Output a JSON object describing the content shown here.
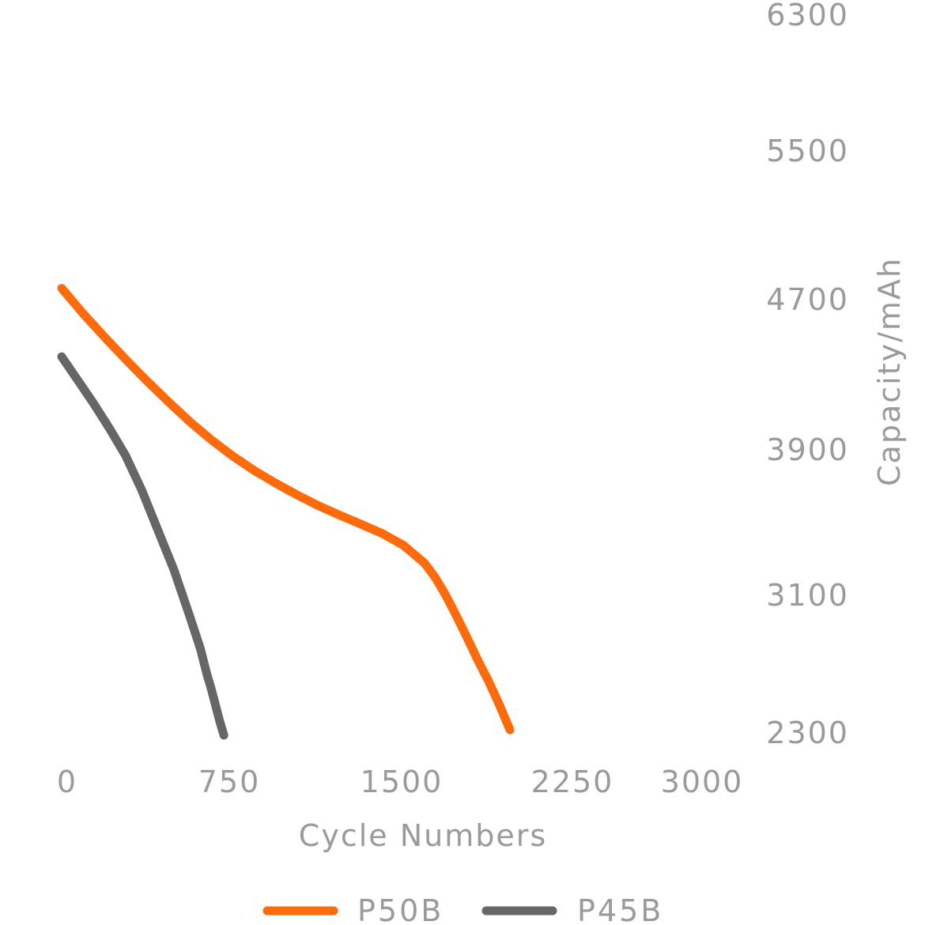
{
  "chart_data": {
    "type": "line",
    "title": "",
    "xlabel": "Cycle Numbers",
    "ylabel": "Capacity/mAh",
    "xlim": [
      0,
      3000
    ],
    "ylim": [
      2300,
      6300
    ],
    "x_ticks": [
      "0",
      "750",
      "1500",
      "2250",
      "3000"
    ],
    "y_ticks": [
      "2300",
      "3100",
      "3900",
      "4700",
      "5500",
      "6300"
    ],
    "y_axis_side": "right",
    "grid": false,
    "legend_position": "bottom-center",
    "series": [
      {
        "name": "P50B",
        "color": "#ff6a0b",
        "x": [
          0,
          100,
          200,
          300,
          400,
          500,
          600,
          700,
          800,
          900,
          1000,
          1100,
          1200,
          1300,
          1400,
          1500,
          1600,
          1700,
          1750,
          1800,
          1850,
          1900,
          1950,
          2000,
          2050,
          2100
        ],
        "y": [
          4780,
          4640,
          4510,
          4385,
          4265,
          4150,
          4040,
          3940,
          3850,
          3770,
          3700,
          3635,
          3575,
          3522,
          3472,
          3420,
          3355,
          3255,
          3175,
          3075,
          2960,
          2840,
          2715,
          2600,
          2470,
          2330
        ]
      },
      {
        "name": "P45B",
        "color": "#666666",
        "x": [
          0,
          75,
          150,
          225,
          300,
          375,
          450,
          525,
          600,
          650,
          680,
          700,
          720,
          740,
          760
        ],
        "y": [
          4400,
          4270,
          4140,
          4000,
          3850,
          3660,
          3440,
          3220,
          2960,
          2780,
          2640,
          2560,
          2470,
          2380,
          2300
        ]
      }
    ]
  }
}
